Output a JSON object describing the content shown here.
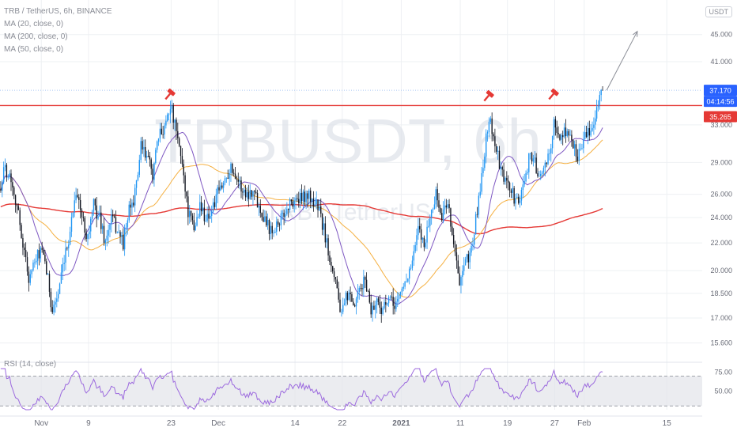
{
  "header": {
    "pair_title": "TRB / TetherUS, 6h, BINANCE",
    "indicators": [
      "MA (20, close, 0)",
      "MA (200, close, 0)",
      "MA (50, close, 0)"
    ],
    "unit_badge": "USDT"
  },
  "watermark": {
    "symbol": "TRBUSDT, 6h",
    "name": "TRB / TetherUS"
  },
  "rsi_label": "RSI (14, close)",
  "colors": {
    "candle_up": "#2196f3",
    "candle_down": "#131722",
    "ma20": "#7e57c2",
    "ma50": "#f5b041",
    "ma200": "#e53935",
    "resistance": "#e53935",
    "current_price_line": "#a9c8f3",
    "rsi": "#9c6ade",
    "axis_text": "#6a6d78",
    "grid": "#eef0f3"
  },
  "chart_data": [
    {
      "type": "candlestick",
      "title": "TRB / TetherUS, 6h, BINANCE",
      "y_scale": "log",
      "ylim": [
        15.0,
        48.0
      ],
      "x_range": [
        "2020-10-25",
        "2021-02-21"
      ],
      "y_ticks": [
        "45.000",
        "41.000",
        "33.000",
        "29.000",
        "26.000",
        "24.000",
        "22.000",
        "20.000",
        "18.500",
        "17.000",
        "15.600"
      ],
      "x_ticks": [
        {
          "date": "2020-11-01",
          "label": "Nov"
        },
        {
          "date": "2020-11-09",
          "label": "9"
        },
        {
          "date": "2020-11-23",
          "label": "23"
        },
        {
          "date": "2020-12-01",
          "label": "Dec"
        },
        {
          "date": "2020-12-14",
          "label": "14"
        },
        {
          "date": "2020-12-22",
          "label": "22"
        },
        {
          "date": "2021-01-01",
          "label": "2021"
        },
        {
          "date": "2021-01-11",
          "label": "11"
        },
        {
          "date": "2021-01-19",
          "label": "19"
        },
        {
          "date": "2021-01-27",
          "label": "27"
        },
        {
          "date": "2021-02-01",
          "label": "Feb"
        },
        {
          "date": "2021-02-15",
          "label": "15"
        }
      ],
      "price_path": [
        [
          "2020-10-25",
          26.5
        ],
        [
          "2020-10-26",
          28.5
        ],
        [
          "2020-10-27",
          27.5
        ],
        [
          "2020-10-28",
          25.0
        ],
        [
          "2020-10-29",
          22.0
        ],
        [
          "2020-10-30",
          19.5
        ],
        [
          "2020-11-01",
          21.5
        ],
        [
          "2020-11-02",
          20.0
        ],
        [
          "2020-11-03",
          17.5
        ],
        [
          "2020-11-04",
          18.5
        ],
        [
          "2020-11-05",
          20.5
        ],
        [
          "2020-11-06",
          23.0
        ],
        [
          "2020-11-07",
          26.5
        ],
        [
          "2020-11-08",
          24.0
        ],
        [
          "2020-11-09",
          22.5
        ],
        [
          "2020-11-10",
          25.0
        ],
        [
          "2020-11-11",
          24.0
        ],
        [
          "2020-11-12",
          22.0
        ],
        [
          "2020-11-13",
          24.0
        ],
        [
          "2020-11-14",
          23.0
        ],
        [
          "2020-11-15",
          22.0
        ],
        [
          "2020-11-16",
          24.5
        ],
        [
          "2020-11-17",
          26.0
        ],
        [
          "2020-11-18",
          30.5
        ],
        [
          "2020-11-19",
          29.5
        ],
        [
          "2020-11-20",
          28.0
        ],
        [
          "2020-11-21",
          31.5
        ],
        [
          "2020-11-22",
          33.0
        ],
        [
          "2020-11-23",
          35.5
        ],
        [
          "2020-11-24",
          32.0
        ],
        [
          "2020-11-25",
          29.0
        ],
        [
          "2020-11-26",
          24.5
        ],
        [
          "2020-11-27",
          23.0
        ],
        [
          "2020-11-28",
          25.0
        ],
        [
          "2020-11-29",
          24.0
        ],
        [
          "2020-11-30",
          24.5
        ],
        [
          "2020-12-01",
          26.0
        ],
        [
          "2020-12-02",
          27.0
        ],
        [
          "2020-12-03",
          28.5
        ],
        [
          "2020-12-04",
          28.0
        ],
        [
          "2020-12-05",
          26.5
        ],
        [
          "2020-12-06",
          26.0
        ],
        [
          "2020-12-07",
          26.5
        ],
        [
          "2020-12-08",
          25.0
        ],
        [
          "2020-12-09",
          24.0
        ],
        [
          "2020-12-10",
          23.0
        ],
        [
          "2020-12-11",
          23.5
        ],
        [
          "2020-12-12",
          24.0
        ],
        [
          "2020-12-13",
          25.0
        ],
        [
          "2020-12-14",
          25.5
        ],
        [
          "2020-12-15",
          25.5
        ],
        [
          "2020-12-16",
          26.0
        ],
        [
          "2020-12-17",
          25.5
        ],
        [
          "2020-12-18",
          25.0
        ],
        [
          "2020-12-19",
          23.0
        ],
        [
          "2020-12-20",
          21.0
        ],
        [
          "2020-12-21",
          19.5
        ],
        [
          "2020-12-22",
          17.0
        ],
        [
          "2020-12-23",
          18.5
        ],
        [
          "2020-12-24",
          17.5
        ],
        [
          "2020-12-25",
          18.5
        ],
        [
          "2020-12-26",
          19.5
        ],
        [
          "2020-12-27",
          17.5
        ],
        [
          "2020-12-28",
          18.0
        ],
        [
          "2020-12-29",
          17.5
        ],
        [
          "2020-12-30",
          18.0
        ],
        [
          "2020-12-31",
          17.8
        ],
        [
          "2021-01-01",
          18.5
        ],
        [
          "2021-01-02",
          19.5
        ],
        [
          "2021-01-03",
          20.5
        ],
        [
          "2021-01-04",
          23.0
        ],
        [
          "2021-01-05",
          22.0
        ],
        [
          "2021-01-06",
          24.0
        ],
        [
          "2021-01-07",
          26.0
        ],
        [
          "2021-01-08",
          24.0
        ],
        [
          "2021-01-09",
          25.5
        ],
        [
          "2021-01-10",
          22.0
        ],
        [
          "2021-01-11",
          19.0
        ],
        [
          "2021-01-12",
          20.5
        ],
        [
          "2021-01-13",
          21.5
        ],
        [
          "2021-01-14",
          24.5
        ],
        [
          "2021-01-15",
          29.0
        ],
        [
          "2021-01-16",
          34.0
        ],
        [
          "2021-01-17",
          31.0
        ],
        [
          "2021-01-18",
          28.0
        ],
        [
          "2021-01-19",
          27.0
        ],
        [
          "2021-01-20",
          26.0
        ],
        [
          "2021-01-21",
          25.0
        ],
        [
          "2021-01-22",
          27.5
        ],
        [
          "2021-01-23",
          30.0
        ],
        [
          "2021-01-24",
          28.5
        ],
        [
          "2021-01-25",
          27.5
        ],
        [
          "2021-01-26",
          29.5
        ],
        [
          "2021-01-27",
          33.0
        ],
        [
          "2021-01-28",
          31.5
        ],
        [
          "2021-01-29",
          32.5
        ],
        [
          "2021-01-30",
          31.0
        ],
        [
          "2021-01-31",
          29.8
        ],
        [
          "2021-02-01",
          31.5
        ],
        [
          "2021-02-02",
          32.0
        ],
        [
          "2021-02-03",
          34.5
        ],
        [
          "2021-02-04",
          37.17
        ]
      ],
      "series": [
        {
          "name": "MA (20, close, 0)"
        },
        {
          "name": "MA (200, close, 0)"
        },
        {
          "name": "MA (50, close, 0)"
        }
      ],
      "resistance_level": 35.265,
      "current_price": 37.17,
      "price_labels": [
        {
          "value": 37.17,
          "text": "37.170"
        },
        {
          "value": 35.265,
          "text": "35.265"
        }
      ],
      "countdown": "04:14:56",
      "annotations": [
        {
          "type": "top-marker",
          "date": "2020-11-23",
          "value": 35.5
        },
        {
          "type": "top-marker",
          "date": "2021-01-16",
          "value": 35.3
        },
        {
          "type": "top-marker",
          "date": "2021-01-27",
          "value": 35.5
        },
        {
          "type": "projection-arrow",
          "from": [
            "2021-02-04",
            37.17
          ],
          "to": [
            "2021-02-10",
            45.5
          ]
        }
      ]
    },
    {
      "type": "line",
      "title": "RSI (14, close)",
      "ylim": [
        25,
        80
      ],
      "y_ticks": [
        "75.00",
        "50.00"
      ],
      "band": [
        30,
        70
      ]
    }
  ]
}
